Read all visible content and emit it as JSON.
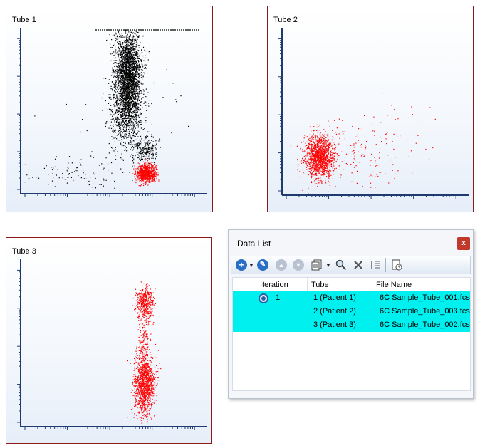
{
  "plots": [
    {
      "title": "Tube 1"
    },
    {
      "title": "Tube 2"
    },
    {
      "title": "Tube 3"
    }
  ],
  "colors": {
    "border": "#8b1a1a",
    "axis": "#1f3a6e",
    "black_pop": "#000000",
    "red_pop": "#ff0000",
    "selection": "#00f0f0"
  },
  "datalist": {
    "title": "Data List",
    "close_label": "x",
    "toolbar": [
      "add-icon",
      "dropdown-arrow",
      "wrench-icon",
      "move-up-icon",
      "move-down-icon",
      "copy-icon",
      "dropdown-arrow",
      "search-icon",
      "delete-icon",
      "sort-icon",
      "properties-icon"
    ],
    "columns": [
      "Iteration",
      "Tube",
      "File Name"
    ],
    "rows": [
      {
        "iteration": "1",
        "tube": "1 (Patient 1)",
        "file": "6C Sample_Tube_001.fcs"
      },
      {
        "iteration": "",
        "tube": "2 (Patient 2)",
        "file": "6C Sample_Tube_003.fcs"
      },
      {
        "iteration": "",
        "tube": "3 (Patient 3)",
        "file": "6C Sample_Tube_002.fcs"
      }
    ]
  }
}
